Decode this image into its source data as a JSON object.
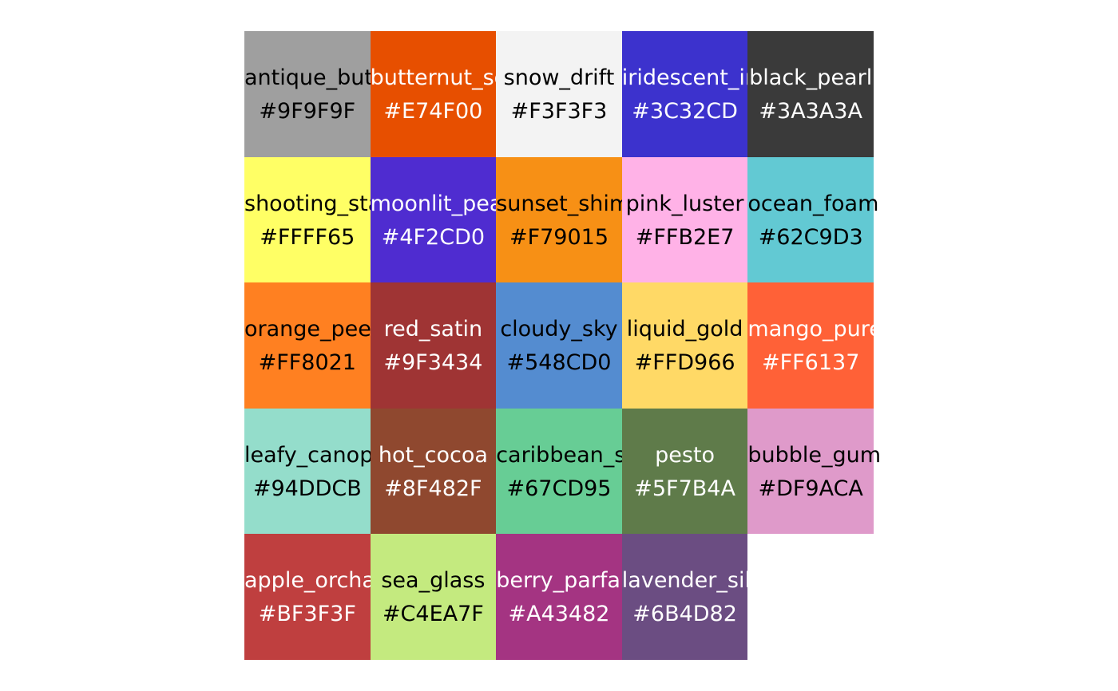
{
  "chart_data": {
    "type": "heatmap",
    "columns": 5,
    "swatches": [
      {
        "name": "antique_butter",
        "hex": "#9F9F9F",
        "text_color": "#000000"
      },
      {
        "name": "butternut_squash",
        "hex": "#E74F00",
        "text_color": "#FFFFFF"
      },
      {
        "name": "snow_drift",
        "hex": "#F3F3F3",
        "text_color": "#000000"
      },
      {
        "name": "iridescent_indigo",
        "hex": "#3C32CD",
        "text_color": "#FFFFFF"
      },
      {
        "name": "black_pearl",
        "hex": "#3A3A3A",
        "text_color": "#FFFFFF"
      },
      {
        "name": "shooting_star",
        "hex": "#FFFF65",
        "text_color": "#000000"
      },
      {
        "name": "moonlit_pearl",
        "hex": "#4F2CD0",
        "text_color": "#FFFFFF"
      },
      {
        "name": "sunset_shimmer",
        "hex": "#F79015",
        "text_color": "#000000"
      },
      {
        "name": "pink_luster",
        "hex": "#FFB2E7",
        "text_color": "#000000"
      },
      {
        "name": "ocean_foam",
        "hex": "#62C9D3",
        "text_color": "#000000"
      },
      {
        "name": "orange_peel",
        "hex": "#FF8021",
        "text_color": "#000000"
      },
      {
        "name": "red_satin",
        "hex": "#9F3434",
        "text_color": "#FFFFFF"
      },
      {
        "name": "cloudy_sky",
        "hex": "#548CD0",
        "text_color": "#000000"
      },
      {
        "name": "liquid_gold",
        "hex": "#FFD966",
        "text_color": "#000000"
      },
      {
        "name": "mango_puree",
        "hex": "#FF6137",
        "text_color": "#FFFFFF"
      },
      {
        "name": "leafy_canopy",
        "hex": "#94DDCB",
        "text_color": "#000000"
      },
      {
        "name": "hot_cocoa",
        "hex": "#8F482F",
        "text_color": "#FFFFFF"
      },
      {
        "name": "caribbean_sea",
        "hex": "#67CD95",
        "text_color": "#000000"
      },
      {
        "name": "pesto",
        "hex": "#5F7B4A",
        "text_color": "#FFFFFF"
      },
      {
        "name": "bubble_gum",
        "hex": "#DF9ACA",
        "text_color": "#000000"
      },
      {
        "name": "apple_orchard",
        "hex": "#BF3F3F",
        "text_color": "#FFFFFF"
      },
      {
        "name": "sea_glass",
        "hex": "#C4EA7F",
        "text_color": "#000000"
      },
      {
        "name": "berry_parfait",
        "hex": "#A43482",
        "text_color": "#FFFFFF"
      },
      {
        "name": "lavender_silk",
        "hex": "#6B4D82",
        "text_color": "#FFFFFF"
      }
    ]
  }
}
